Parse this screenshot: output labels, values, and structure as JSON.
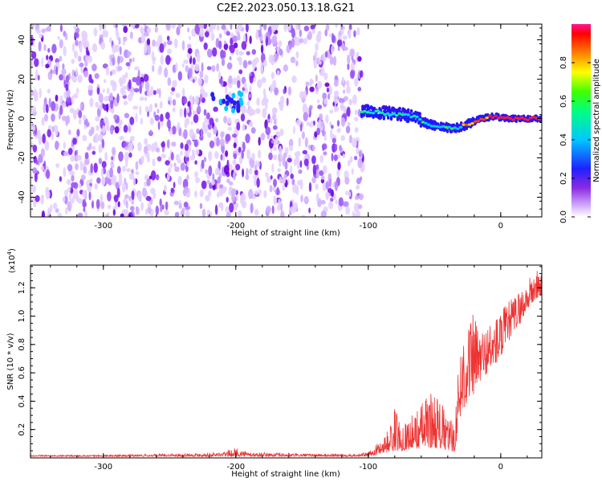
{
  "title": "C2E2.2023.050.13.18.G21",
  "spectrogram": {
    "xlabel": "Height of straight line (km)",
    "ylabel": "Frequency (Hz)",
    "xlim": [
      -355,
      31
    ],
    "ylim": [
      -50,
      48
    ],
    "xticks": [
      "-300",
      "-200",
      "-100",
      "0"
    ],
    "xtick_values": [
      -300,
      -200,
      -100,
      0
    ],
    "yticks": [
      "-40",
      "-20",
      "0",
      "20",
      "40"
    ],
    "ytick_values": [
      -40,
      -20,
      0,
      20,
      40
    ],
    "colorbar": {
      "label": "Normalized spectral amplitude",
      "ticks": [
        "0.0",
        "0.2",
        "0.4",
        "0.6",
        "0.8"
      ],
      "tick_values": [
        0.0,
        0.2,
        0.4,
        0.6,
        0.8
      ],
      "range": [
        0,
        1
      ]
    },
    "noise_region_x": [
      -355,
      -104
    ],
    "signal_trace": {
      "x": [
        -105,
        -90,
        -75,
        -65,
        -55,
        -45,
        -35,
        -25,
        -15,
        -5,
        5,
        15,
        25,
        31
      ],
      "y": [
        4,
        3,
        2,
        1,
        -3,
        -4,
        -5,
        -3,
        0,
        1,
        0,
        0,
        0,
        0
      ]
    },
    "blob": {
      "x": [
        -218,
        -195
      ],
      "y": [
        4,
        13
      ]
    }
  },
  "chart_data": [
    {
      "type": "heatmap",
      "title": "C2E2.2023.050.13.18.G21",
      "xlabel": "Height of straight line (km)",
      "ylabel": "Frequency (Hz)",
      "xlim": [
        -355,
        31
      ],
      "ylim": [
        -50,
        48
      ],
      "colorbar_label": "Normalized spectral amplitude",
      "colorbar_range": [
        0,
        1
      ]
    },
    {
      "type": "line",
      "xlabel": "Height of straight line (km)",
      "ylabel": "SNR (10 * v/v)",
      "y_multiplier": "(x10⁴)",
      "xlim": [
        -355,
        31
      ],
      "ylim": [
        0,
        1.36
      ],
      "color": "#ee3333",
      "envelope": {
        "x": [
          -355,
          -300,
          -250,
          -210,
          -200,
          -190,
          -150,
          -110,
          -100,
          -95,
          -90,
          -85,
          -80,
          -75,
          -70,
          -65,
          -60,
          -55,
          -50,
          -45,
          -40,
          -35,
          -30,
          -25,
          -20,
          -15,
          -10,
          -5,
          0,
          5,
          10,
          15,
          20,
          25,
          31
        ],
        "low": [
          0.01,
          0.01,
          0.01,
          0.01,
          0.01,
          0.01,
          0.01,
          0.01,
          0.01,
          0.02,
          0.03,
          0.04,
          0.05,
          0.05,
          0.06,
          0.06,
          0.07,
          0.07,
          0.07,
          0.06,
          0.05,
          0.04,
          0.3,
          0.4,
          0.45,
          0.55,
          0.6,
          0.65,
          0.7,
          0.8,
          0.9,
          0.95,
          1.05,
          1.1,
          1.15
        ],
        "high": [
          0.02,
          0.02,
          0.03,
          0.04,
          0.07,
          0.04,
          0.03,
          0.03,
          0.04,
          0.08,
          0.15,
          0.2,
          0.36,
          0.25,
          0.28,
          0.32,
          0.4,
          0.45,
          0.5,
          0.4,
          0.3,
          0.25,
          0.9,
          1.0,
          1.02,
          0.92,
          0.95,
          1.0,
          1.05,
          1.1,
          1.15,
          1.2,
          1.25,
          1.32,
          1.35
        ]
      }
    }
  ],
  "snr": {
    "xlabel": "Height of straight line (km)",
    "ylabel": "SNR (10 * v/v)",
    "multiplier_base": "(x10",
    "multiplier_exp": "4",
    "multiplier_close": ")",
    "xticks": [
      "-300",
      "-200",
      "-100",
      "0"
    ],
    "xtick_values": [
      -300,
      -200,
      -100,
      0
    ],
    "yticks": [
      "0.2",
      "0.4",
      "0.6",
      "0.8",
      "1.0",
      "1.2"
    ],
    "ytick_values": [
      0.2,
      0.4,
      0.6,
      0.8,
      1.0,
      1.2
    ]
  }
}
